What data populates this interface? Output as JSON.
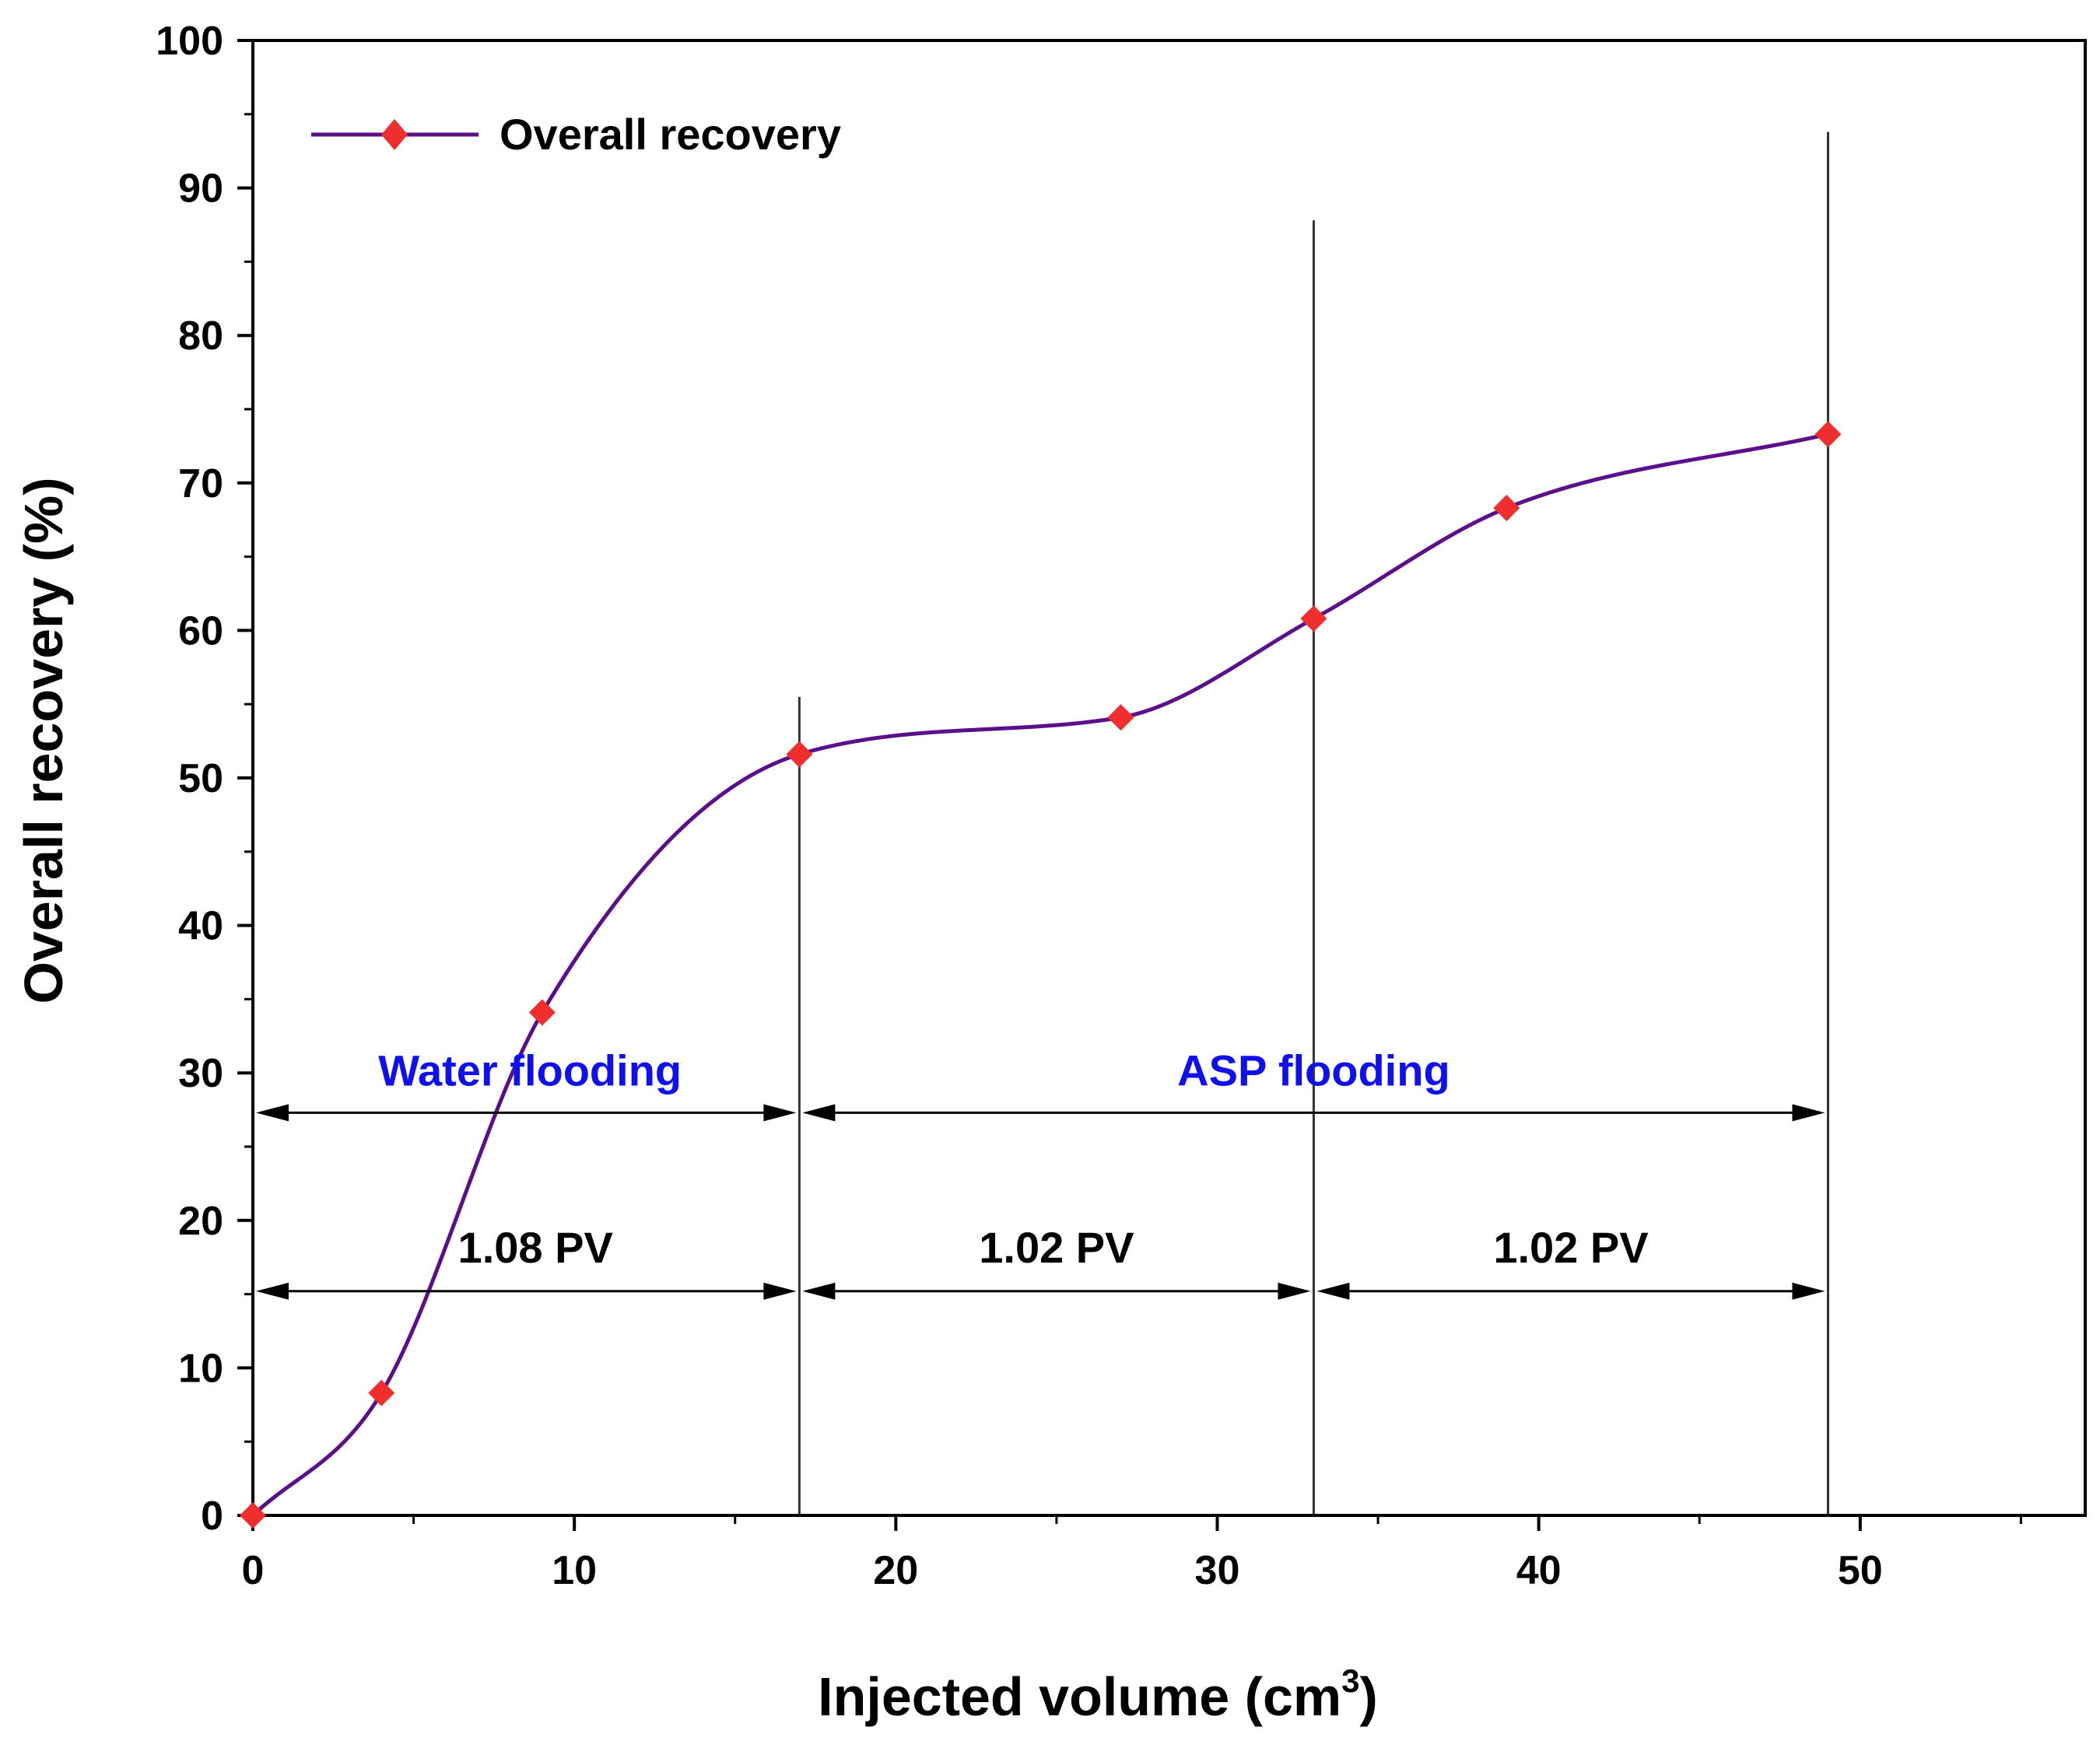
{
  "chart_data": {
    "type": "line",
    "xlabel": "Injected volume (cm",
    "xlabel_sup": "3",
    "xlabel_end": ")",
    "ylabel": "Overall recovery (%)",
    "xlim": [
      0,
      57
    ],
    "ylim": [
      0,
      100
    ],
    "x_ticks": [
      0,
      10,
      20,
      30,
      40,
      50
    ],
    "y_ticks": [
      0,
      10,
      20,
      30,
      40,
      50,
      60,
      70,
      80,
      90,
      100
    ],
    "legend": {
      "position": "top-left",
      "label": "Overall recovery"
    },
    "series": [
      {
        "name": "Overall recovery",
        "line_color": "#5c0f8b",
        "marker_color": "#f02e2e",
        "marker": "diamond",
        "x": [
          0,
          4,
          9,
          17,
          27,
          33,
          39,
          49
        ],
        "y": [
          0,
          8.3,
          34.1,
          51.6,
          54.1,
          60.8,
          68.3,
          73.3
        ]
      }
    ],
    "vertical_lines": [
      {
        "x": 17,
        "y_top": 55.5
      },
      {
        "x": 33,
        "y_top": 87.8
      },
      {
        "x": 49,
        "y_top": 93.8
      }
    ],
    "phases": [
      {
        "label": "Water flooding",
        "x_start": 0,
        "x_end": 17,
        "y_arrow": 27.3,
        "y_label": 30.2,
        "color": "#1010ee"
      },
      {
        "label": "ASP flooding",
        "x_start": 17,
        "x_end": 49,
        "y_arrow": 27.3,
        "y_label": 30.2,
        "color": "#1010ee"
      }
    ],
    "pv_spans": [
      {
        "label": "1.08 PV",
        "x_start": 0,
        "x_end": 17,
        "y_arrow": 15.2,
        "y_label": 18.2
      },
      {
        "label": "1.02 PV",
        "x_start": 17,
        "x_end": 33,
        "y_arrow": 15.2,
        "y_label": 18.2
      },
      {
        "label": "1.02 PV",
        "x_start": 33,
        "x_end": 49,
        "y_arrow": 15.2,
        "y_label": 18.2
      }
    ]
  }
}
